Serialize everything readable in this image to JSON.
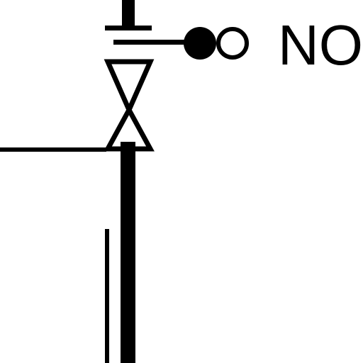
{
  "diagram": {
    "contact_label": "NO",
    "colors": {
      "line": "#000000",
      "background": "#ffffff"
    }
  }
}
